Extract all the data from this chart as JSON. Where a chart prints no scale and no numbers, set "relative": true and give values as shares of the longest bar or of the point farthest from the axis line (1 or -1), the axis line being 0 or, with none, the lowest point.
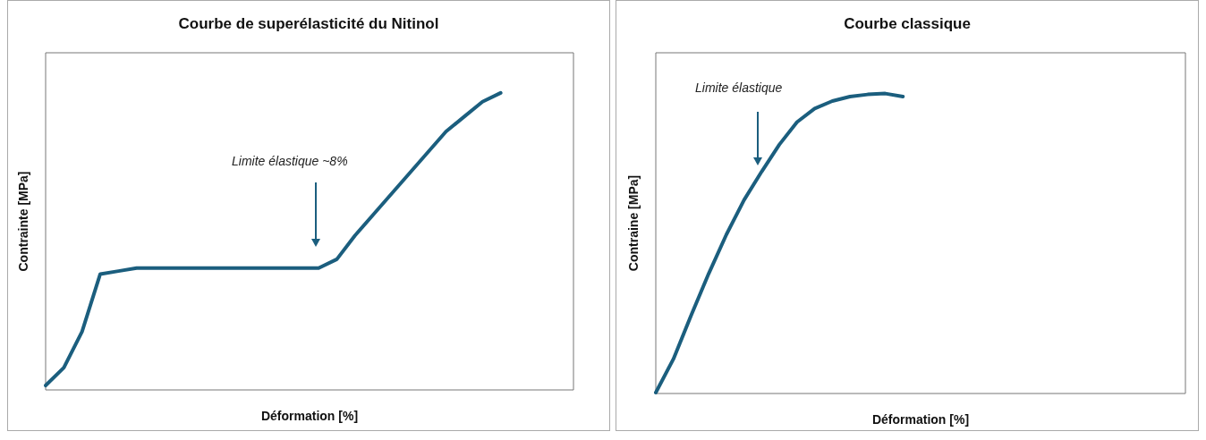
{
  "chart_data": [
    {
      "type": "line",
      "title": "Courbe de superélasticité du Nitinol",
      "xlabel": "Déformation [%]",
      "ylabel": "Contrainte [MPa]",
      "relative": true,
      "tick_labels": false,
      "marker": "none",
      "annotations": [
        "Limite élastique ~8%"
      ],
      "categories": [
        null,
        null,
        null,
        null,
        null,
        null,
        null,
        null,
        null,
        null,
        null,
        null,
        null,
        null,
        null,
        null,
        null,
        null,
        null,
        null,
        null,
        null,
        null,
        null,
        null,
        null,
        null,
        null,
        null,
        null
      ],
      "series": [
        {
          "color": "#1b5e7e",
          "values": [
            0.015,
            0.075,
            0.196,
            0.39,
            0.4,
            0.41,
            0.41,
            0.41,
            0.41,
            0.41,
            0.41,
            0.41,
            0.41,
            0.41,
            0.41,
            0.41,
            0.44,
            0.52,
            0.59,
            0.66,
            0.73,
            0.8,
            0.87,
            0.92,
            0.97,
            1,
            null,
            null,
            null,
            null
          ]
        }
      ]
    },
    {
      "type": "line",
      "title": "Courbe classique",
      "xlabel": "Déformation [%]",
      "ylabel": "Contraine [MPa]",
      "relative": true,
      "tick_labels": false,
      "marker": "none",
      "annotations": [
        "Limite élastique"
      ],
      "categories": [
        null,
        null,
        null,
        null,
        null,
        null,
        null,
        null,
        null,
        null,
        null,
        null,
        null,
        null,
        null,
        null,
        null,
        null,
        null,
        null,
        null,
        null,
        null,
        null,
        null,
        null,
        null,
        null,
        null,
        null,
        null
      ],
      "series": [
        {
          "color": "#1b5e7e",
          "values": [
            0.003,
            0.115,
            0.26,
            0.4,
            0.53,
            0.645,
            0.74,
            0.83,
            0.905,
            0.95,
            0.975,
            0.99,
            0.997,
            1,
            0.99,
            null,
            null,
            null,
            null,
            null,
            null,
            null,
            null,
            null,
            null,
            null,
            null,
            null,
            null,
            null,
            null
          ]
        }
      ]
    }
  ]
}
